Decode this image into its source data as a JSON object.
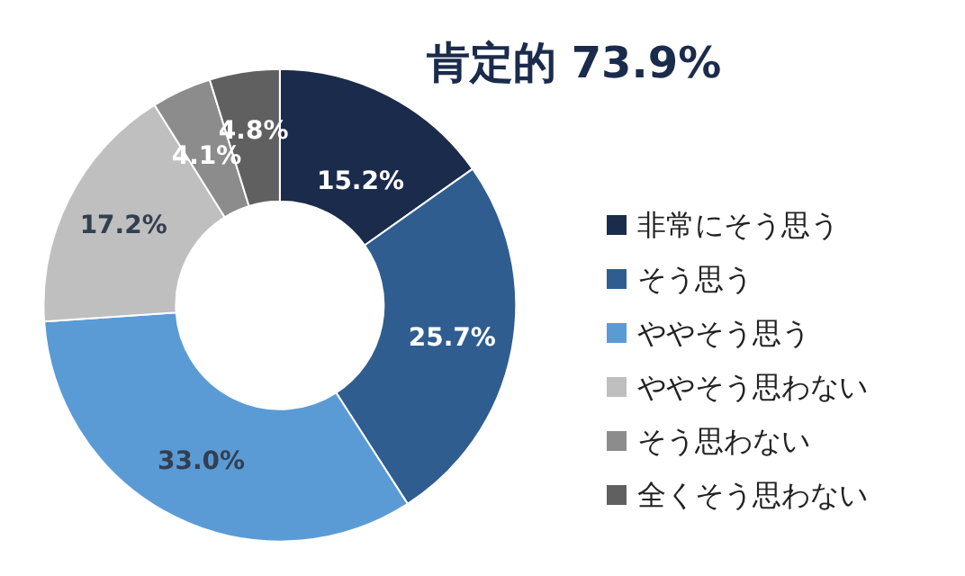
{
  "chart_data": {
    "type": "donut",
    "title": "肯定的 73.9%",
    "categories": [
      "非常にそう思う",
      "そう思う",
      "ややそう思う",
      "ややそう思わない",
      "そう思わない",
      "全くそう思わない"
    ],
    "values": [
      15.2,
      25.7,
      33.0,
      17.2,
      4.1,
      4.8
    ],
    "colors": [
      "#1b2b4b",
      "#2f5d8f",
      "#5b9bd5",
      "#bfbfbf",
      "#8c8c8c",
      "#606060"
    ],
    "value_labels": [
      "15.2%",
      "25.7%",
      "33.0%",
      "17.2%",
      "4.1%",
      "4.8%"
    ],
    "legend": "right"
  }
}
